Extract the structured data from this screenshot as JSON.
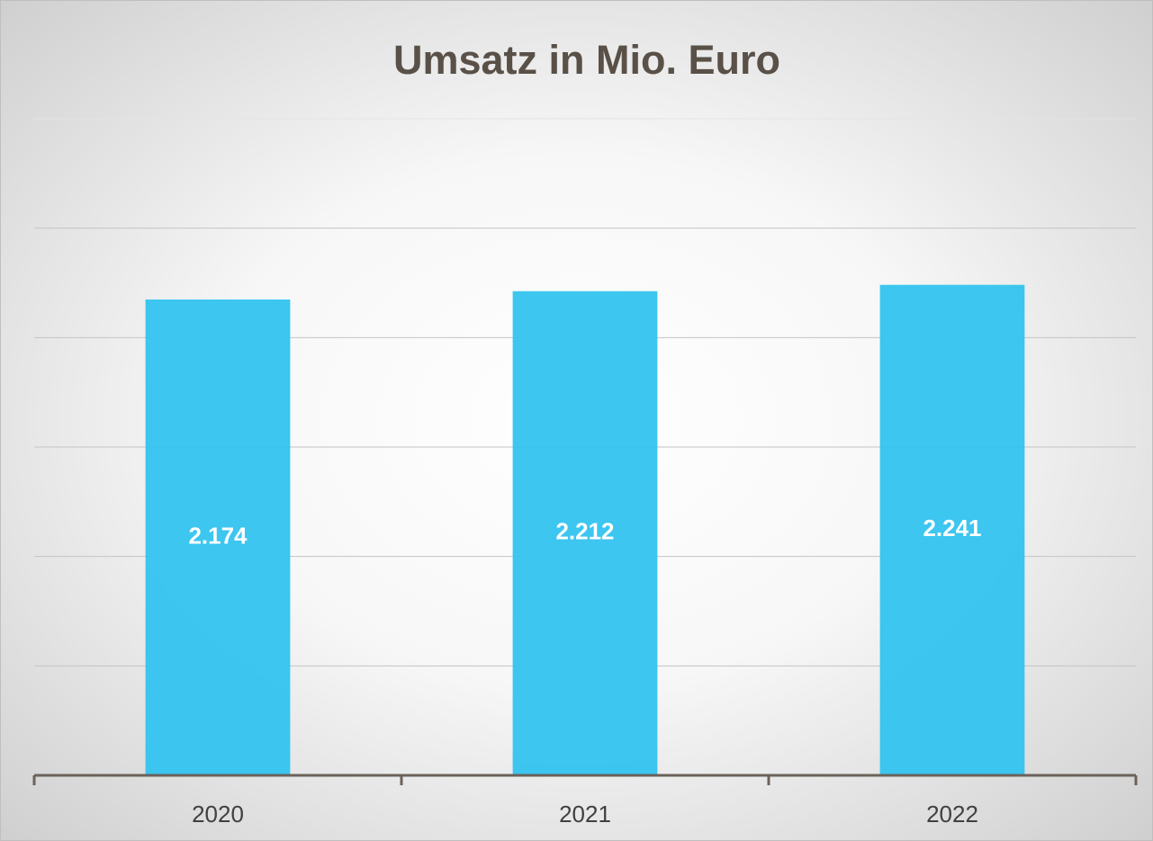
{
  "chart_data": {
    "type": "bar",
    "title": "Umsatz in Mio. Euro",
    "categories": [
      "2020",
      "2021",
      "2022"
    ],
    "values": [
      2174,
      2212,
      2241
    ],
    "value_labels": [
      "2.174",
      "2.212",
      "2.241"
    ],
    "color": "#31c3ef",
    "ylim": [
      0,
      3000
    ],
    "yticks": [
      0,
      500,
      1000,
      1500,
      2000,
      2500,
      3000
    ],
    "grid": true
  }
}
